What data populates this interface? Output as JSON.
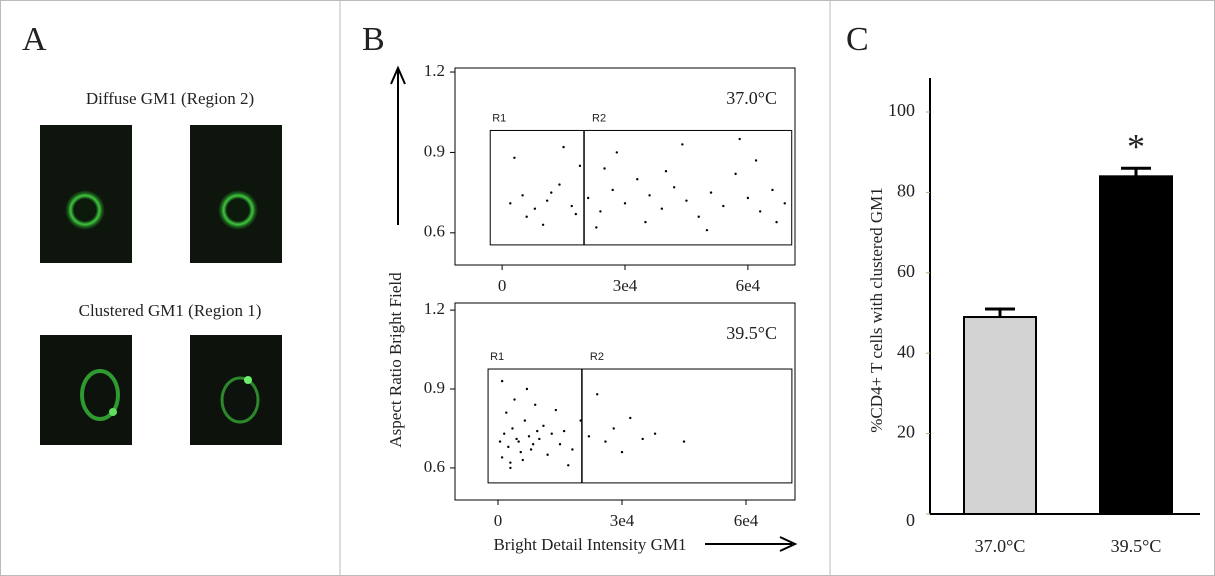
{
  "panels": {
    "a": {
      "label": "A",
      "top_caption": "Diffuse GM1 (Region 2)",
      "bottom_caption": "Clustered GM1 (Region 1)"
    },
    "b": {
      "label": "B"
    },
    "c": {
      "label": "C"
    }
  },
  "chart_data": [
    {
      "type": "scatter",
      "annotation": "37.0°C",
      "ylabel": "Aspect Ratio Bright Field",
      "color": "#000000",
      "x": [
        2000,
        5000,
        8000,
        11000,
        14000,
        17000,
        19000,
        21000,
        24000,
        27000,
        30000,
        33000,
        36000,
        39000,
        42000,
        45000,
        48000,
        51000,
        54000,
        57000,
        60000,
        63000,
        66000,
        69000,
        3000,
        10000,
        15000,
        23000,
        28000,
        35000,
        44000,
        50000,
        58000,
        12000,
        6000,
        18000,
        25000,
        40000,
        62000,
        67000
      ],
      "y": [
        0.71,
        0.74,
        0.69,
        0.72,
        0.78,
        0.7,
        0.85,
        0.73,
        0.68,
        0.76,
        0.71,
        0.8,
        0.74,
        0.69,
        0.77,
        0.72,
        0.66,
        0.75,
        0.7,
        0.82,
        0.73,
        0.68,
        0.76,
        0.71,
        0.88,
        0.63,
        0.92,
        0.62,
        0.9,
        0.64,
        0.93,
        0.61,
        0.95,
        0.75,
        0.66,
        0.67,
        0.84,
        0.83,
        0.87,
        0.64
      ],
      "xlim": [
        -11500,
        71500
      ],
      "ylim": [
        0.48,
        1.215
      ],
      "xticks": [
        0,
        {
          "value": 30000,
          "label": "3e4"
        },
        {
          "value": 60000,
          "label": "6e4"
        }
      ],
      "yticks": [
        0.6,
        0.9,
        1.2
      ],
      "gate": {
        "xlim": [
          -2900,
          70700
        ],
        "ylim": [
          0.555,
          0.982
        ],
        "divider": 20000,
        "labels": [
          "R1",
          "R2"
        ]
      }
    },
    {
      "type": "scatter",
      "annotation": "39.5°C",
      "xlabel": "Bright Detail Intensity GM1",
      "color": "#000000",
      "x": [
        500,
        1500,
        2500,
        3500,
        4500,
        5500,
        6500,
        7500,
        8500,
        9500,
        1000,
        2000,
        3000,
        4000,
        5000,
        6000,
        7000,
        8000,
        10000,
        11000,
        12000,
        13000,
        14000,
        15000,
        16000,
        18000,
        20000,
        22000,
        24000,
        26000,
        28000,
        30000,
        32000,
        35000,
        38000,
        45000,
        1000,
        3000,
        9000,
        17000
      ],
      "y": [
        0.7,
        0.73,
        0.68,
        0.75,
        0.71,
        0.66,
        0.78,
        0.72,
        0.69,
        0.74,
        0.64,
        0.81,
        0.62,
        0.86,
        0.7,
        0.63,
        0.9,
        0.67,
        0.71,
        0.76,
        0.65,
        0.73,
        0.82,
        0.69,
        0.74,
        0.67,
        0.78,
        0.72,
        0.88,
        0.7,
        0.75,
        0.66,
        0.79,
        0.71,
        0.73,
        0.7,
        0.93,
        0.6,
        0.84,
        0.61
      ],
      "xlim": [
        -10400,
        71850
      ],
      "ylim": [
        0.478,
        1.227
      ],
      "xticks": [
        0,
        {
          "value": 30000,
          "label": "3e4"
        },
        {
          "value": 60000,
          "label": "6e4"
        }
      ],
      "yticks": [
        0.6,
        0.9,
        1.2
      ],
      "gate": {
        "xlim": [
          -2400,
          71100
        ],
        "ylim": [
          0.543,
          0.976
        ],
        "divider": 20300,
        "labels": [
          "R1",
          "R2"
        ]
      }
    },
    {
      "type": "bar",
      "ylabel": "%CD4+ T cells with clustered GM1",
      "categories": [
        "37.0°C",
        "39.5°C"
      ],
      "values": [
        49,
        84
      ],
      "errors": [
        2,
        2
      ],
      "colors": [
        "#d3d3d3",
        "#000000"
      ],
      "ylim": [
        0,
        100
      ],
      "yticks": [
        0,
        20,
        40,
        60,
        80,
        100
      ],
      "annotations": [
        {
          "text": "*",
          "category": "39.5°C"
        }
      ]
    }
  ]
}
